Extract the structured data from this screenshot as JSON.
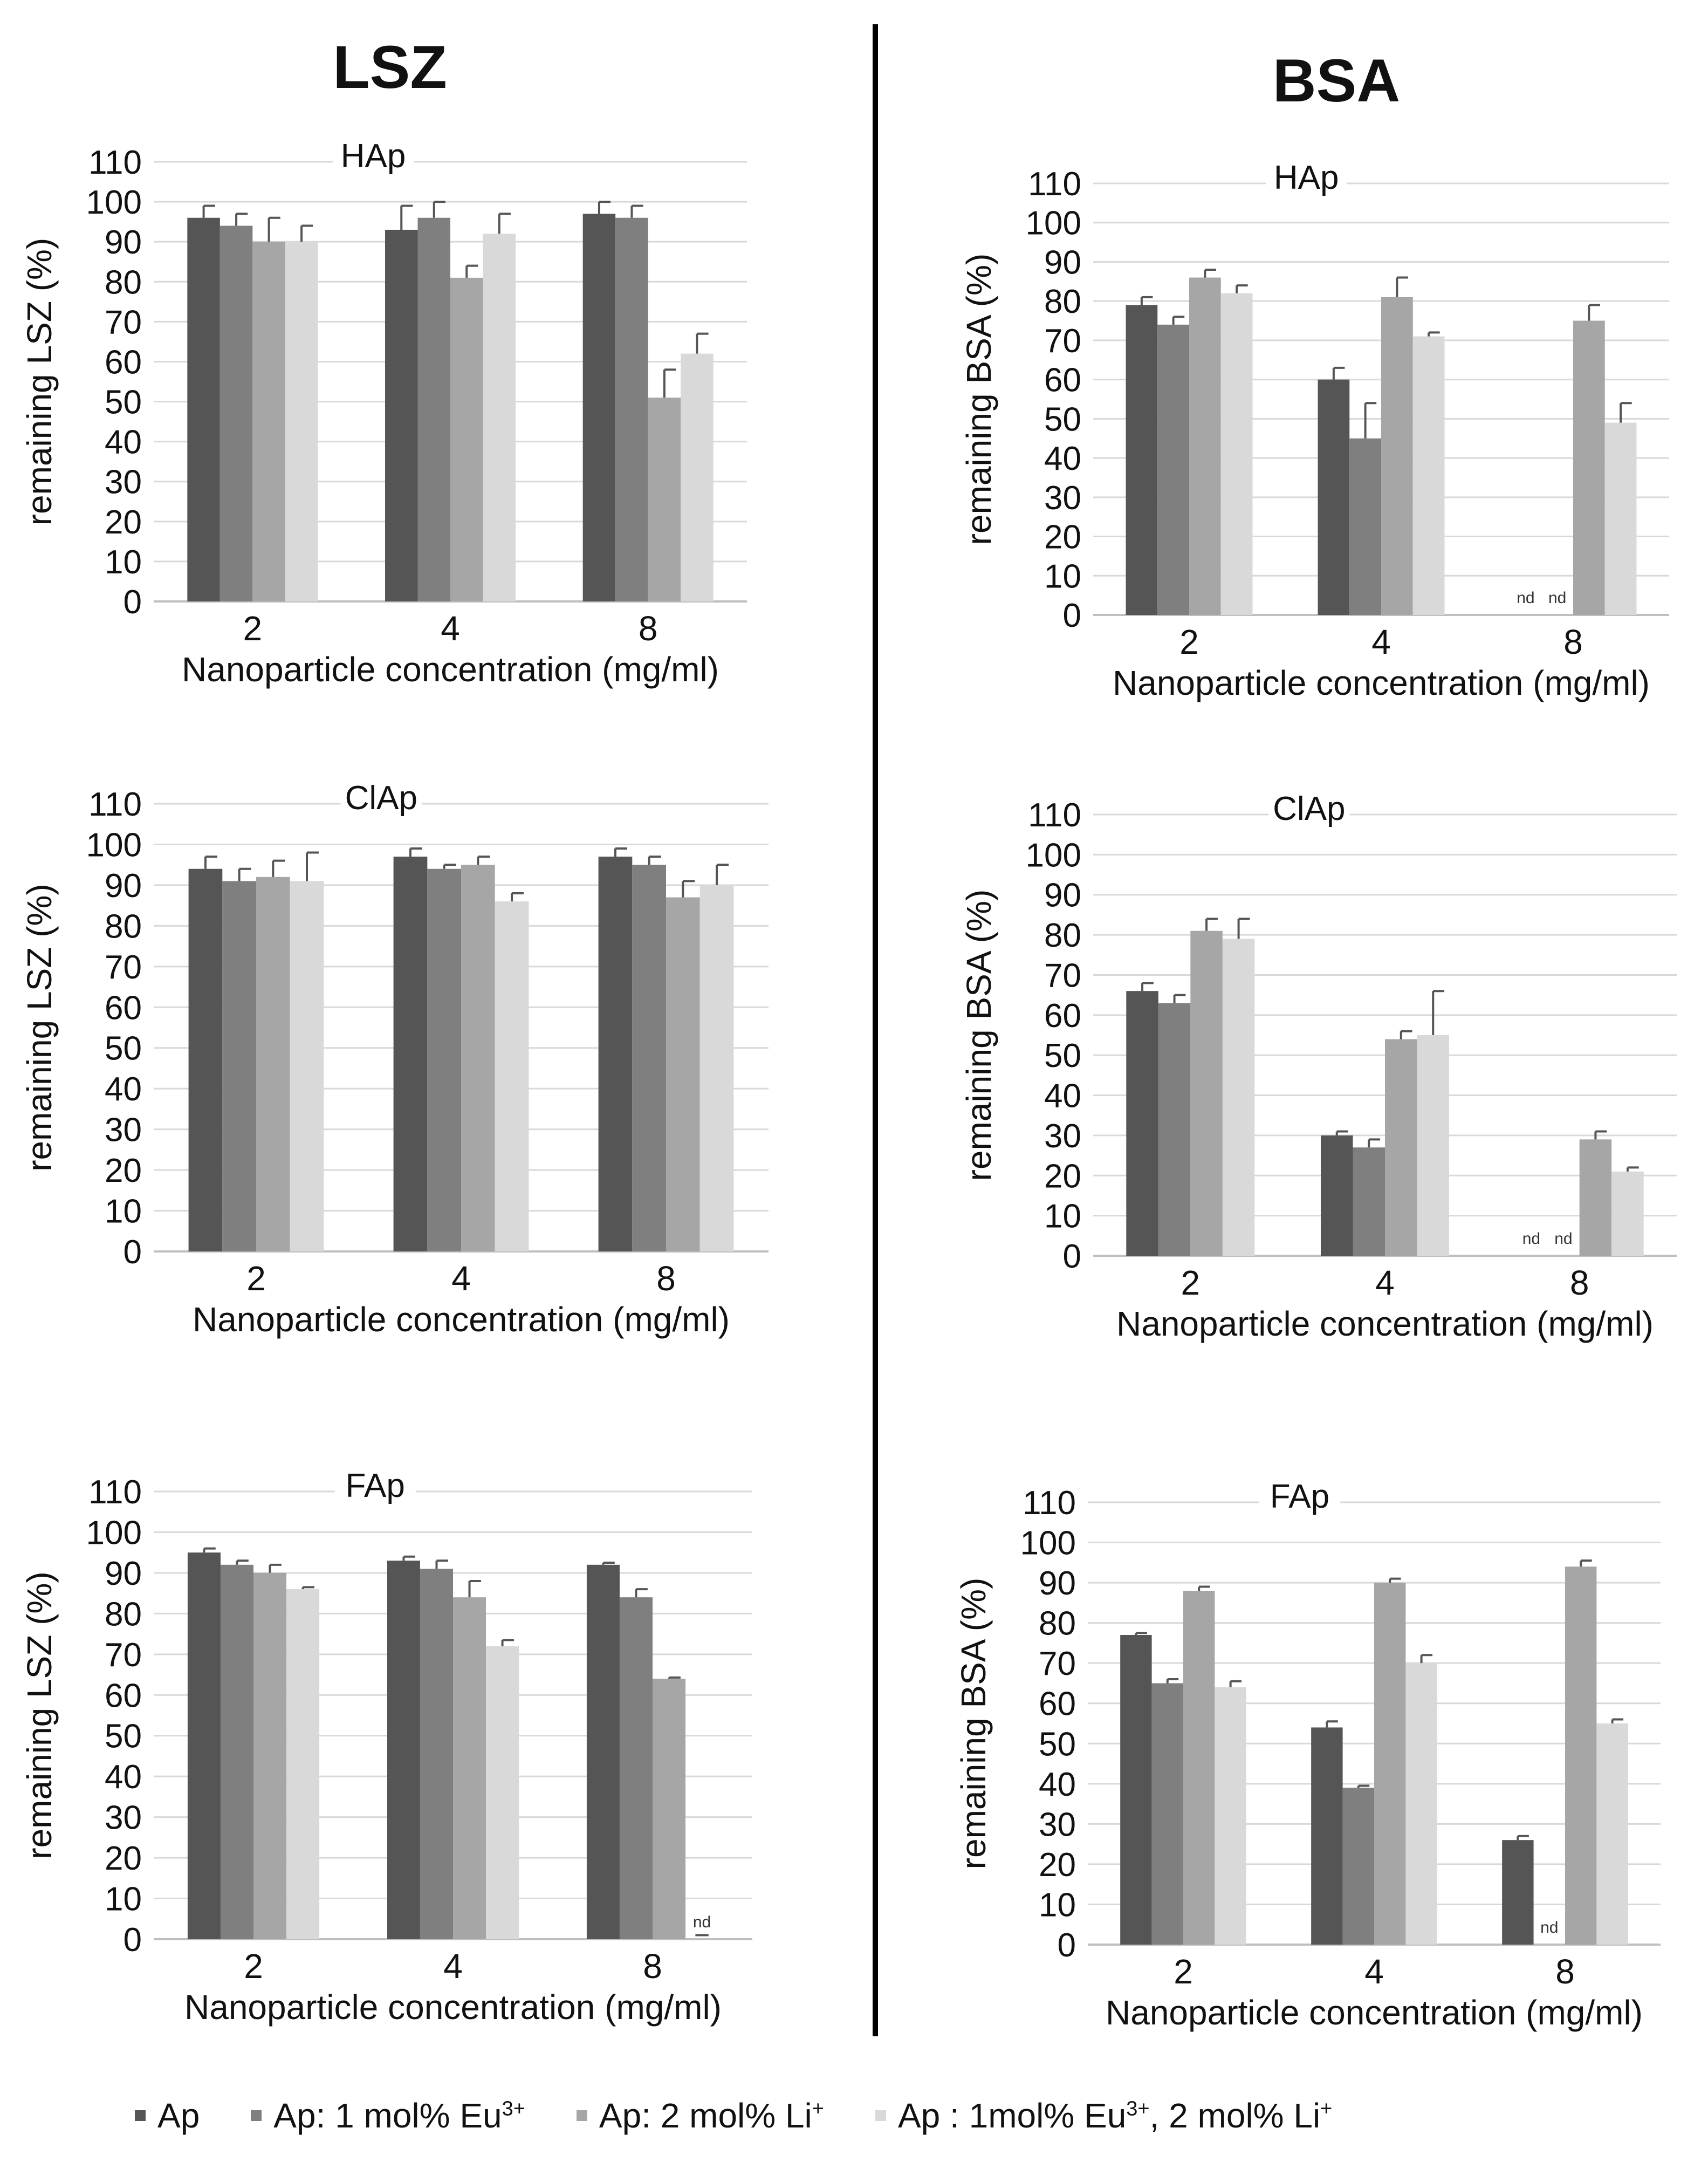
{
  "columns": {
    "left": "LSZ",
    "right": "BSA"
  },
  "legend": {
    "items": [
      {
        "text": "Ap",
        "color": "#555555"
      },
      {
        "text": "Ap: 1 mol% Eu",
        "sup": "3+",
        "color": "#7f7f7f"
      },
      {
        "text": "Ap: 2 mol% Li",
        "sup": "+",
        "color": "#a6a6a6"
      },
      {
        "text": "Ap : 1mol% Eu",
        "sup": "3+",
        "text2": ", 2 mol% Li",
        "sup2": "+",
        "color": "#d9d9d9"
      }
    ]
  },
  "chart_data": [
    {
      "type": "bar",
      "panel": "LSZ-HAp",
      "title": "HAp",
      "xlabel": "Nanoparticle concentration (mg/ml)",
      "ylabel": "remaining LSZ (%)",
      "ylim": [
        0,
        110
      ],
      "yticks": [
        0,
        10,
        20,
        30,
        40,
        50,
        60,
        70,
        80,
        90,
        100,
        110
      ],
      "categories": [
        "2",
        "4",
        "8"
      ],
      "series": [
        {
          "name": "Ap",
          "values": [
            96,
            93,
            97
          ],
          "errors": [
            3,
            6,
            3
          ]
        },
        {
          "name": "Ap: 1 mol% Eu3+",
          "values": [
            94,
            96,
            96
          ],
          "errors": [
            3,
            4,
            3
          ]
        },
        {
          "name": "Ap: 2 mol% Li+",
          "values": [
            90,
            81,
            51
          ],
          "errors": [
            6,
            3,
            7
          ]
        },
        {
          "name": "Ap : 1mol% Eu3+, 2 mol% Li+",
          "values": [
            90,
            92,
            62
          ],
          "errors": [
            4,
            5,
            5
          ]
        }
      ],
      "nd": []
    },
    {
      "type": "bar",
      "panel": "BSA-HAp",
      "title": "HAp",
      "xlabel": "Nanoparticle concentration (mg/ml)",
      "ylabel": "remaining BSA (%)",
      "ylim": [
        0,
        110
      ],
      "yticks": [
        0,
        10,
        20,
        30,
        40,
        50,
        60,
        70,
        80,
        90,
        100,
        110
      ],
      "categories": [
        "2",
        "4",
        "8"
      ],
      "series": [
        {
          "name": "Ap",
          "values": [
            79,
            60,
            0
          ],
          "errors": [
            2,
            3,
            0
          ]
        },
        {
          "name": "Ap: 1 mol% Eu3+",
          "values": [
            74,
            45,
            0
          ],
          "errors": [
            2,
            9,
            0
          ]
        },
        {
          "name": "Ap: 2 mol% Li+",
          "values": [
            86,
            81,
            75
          ],
          "errors": [
            2,
            5,
            4
          ]
        },
        {
          "name": "Ap : 1mol% Eu3+, 2 mol% Li+",
          "values": [
            82,
            71,
            49
          ],
          "errors": [
            2,
            1,
            5
          ]
        }
      ],
      "nd": [
        {
          "category": 2,
          "series": 0,
          "label": "nd"
        },
        {
          "category": 2,
          "series": 1,
          "label": "nd"
        }
      ]
    },
    {
      "type": "bar",
      "panel": "LSZ-ClAp",
      "title": "ClAp",
      "xlabel": "Nanoparticle concentration (mg/ml)",
      "ylabel": "remaining LSZ (%)",
      "ylim": [
        0,
        110
      ],
      "yticks": [
        0,
        10,
        20,
        30,
        40,
        50,
        60,
        70,
        80,
        90,
        100,
        110
      ],
      "categories": [
        "2",
        "4",
        "8"
      ],
      "series": [
        {
          "name": "Ap",
          "values": [
            94,
            97,
            97
          ],
          "errors": [
            3,
            2,
            2
          ]
        },
        {
          "name": "Ap: 1 mol% Eu3+",
          "values": [
            91,
            94,
            95
          ],
          "errors": [
            3,
            1,
            2
          ]
        },
        {
          "name": "Ap: 2 mol% Li+",
          "values": [
            92,
            95,
            87
          ],
          "errors": [
            4,
            2,
            4
          ]
        },
        {
          "name": "Ap : 1mol% Eu3+, 2 mol% Li+",
          "values": [
            91,
            86,
            90
          ],
          "errors": [
            7,
            2,
            5
          ]
        }
      ],
      "nd": []
    },
    {
      "type": "bar",
      "panel": "BSA-ClAp",
      "title": "ClAp",
      "xlabel": "Nanoparticle concentration (mg/ml)",
      "ylabel": "remaining BSA (%)",
      "ylim": [
        0,
        110
      ],
      "yticks": [
        0,
        10,
        20,
        30,
        40,
        50,
        60,
        70,
        80,
        90,
        100,
        110
      ],
      "categories": [
        "2",
        "4",
        "8"
      ],
      "series": [
        {
          "name": "Ap",
          "values": [
            66,
            30,
            0
          ],
          "errors": [
            2,
            1,
            0
          ]
        },
        {
          "name": "Ap: 1 mol% Eu3+",
          "values": [
            63,
            27,
            0
          ],
          "errors": [
            2,
            2,
            0
          ]
        },
        {
          "name": "Ap: 2 mol% Li+",
          "values": [
            81,
            54,
            29
          ],
          "errors": [
            3,
            2,
            2
          ]
        },
        {
          "name": "Ap : 1mol% Eu3+, 2 mol% Li+",
          "values": [
            79,
            55,
            21
          ],
          "errors": [
            5,
            11,
            1
          ]
        }
      ],
      "nd": [
        {
          "category": 2,
          "series": 0,
          "label": "nd"
        },
        {
          "category": 2,
          "series": 1,
          "label": "nd"
        }
      ]
    },
    {
      "type": "bar",
      "panel": "LSZ-FAp",
      "title": "FAp",
      "xlabel": "Nanoparticle concentration (mg/ml)",
      "ylabel": "remaining LSZ (%)",
      "ylim": [
        0,
        110
      ],
      "yticks": [
        0,
        10,
        20,
        30,
        40,
        50,
        60,
        70,
        80,
        90,
        100,
        110
      ],
      "categories": [
        "2",
        "4",
        "8"
      ],
      "series": [
        {
          "name": "Ap",
          "values": [
            95,
            93,
            92
          ],
          "errors": [
            1,
            1,
            0.5
          ]
        },
        {
          "name": "Ap: 1 mol% Eu3+",
          "values": [
            92,
            91,
            84
          ],
          "errors": [
            1,
            2,
            2
          ]
        },
        {
          "name": "Ap: 2 mol% Li+",
          "values": [
            90,
            84,
            64
          ],
          "errors": [
            2,
            4,
            0.3
          ]
        },
        {
          "name": "Ap : 1mol% Eu3+, 2 mol% Li+",
          "values": [
            86,
            72,
            0
          ],
          "errors": [
            0.5,
            1.5,
            1
          ]
        }
      ],
      "nd": [
        {
          "category": 2,
          "series": 3,
          "label": "nd"
        }
      ]
    },
    {
      "type": "bar",
      "panel": "BSA-FAp",
      "title": "FAp",
      "xlabel": "Nanoparticle concentration (mg/ml)",
      "ylabel": "remaining BSA (%)",
      "ylim": [
        0,
        110
      ],
      "yticks": [
        0,
        10,
        20,
        30,
        40,
        50,
        60,
        70,
        80,
        90,
        100,
        110
      ],
      "categories": [
        "2",
        "4",
        "8"
      ],
      "series": [
        {
          "name": "Ap",
          "values": [
            77,
            54,
            26
          ],
          "errors": [
            0.5,
            1.5,
            1
          ]
        },
        {
          "name": "Ap: 1 mol% Eu3+",
          "values": [
            65,
            39,
            0
          ],
          "errors": [
            1,
            0.5,
            0
          ]
        },
        {
          "name": "Ap: 2 mol% Li+",
          "values": [
            88,
            90,
            94
          ],
          "errors": [
            1,
            1,
            1.5
          ]
        },
        {
          "name": "Ap : 1mol% Eu3+, 2 mol% Li+",
          "values": [
            64,
            70,
            55
          ],
          "errors": [
            1.5,
            2,
            1
          ]
        }
      ],
      "nd": [
        {
          "category": 2,
          "series": 1,
          "label": "nd"
        }
      ]
    }
  ]
}
